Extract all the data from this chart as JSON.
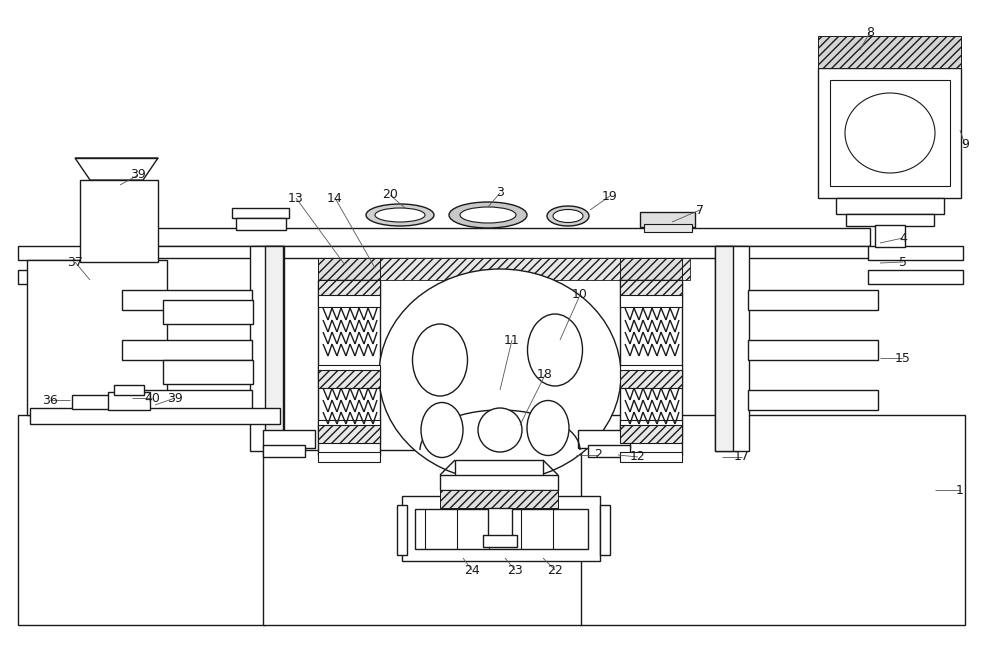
{
  "bg": "#ffffff",
  "lc": "#1a1a1a",
  "lw": 1.0,
  "fig_w": 10.0,
  "fig_h": 6.58,
  "dpi": 100
}
